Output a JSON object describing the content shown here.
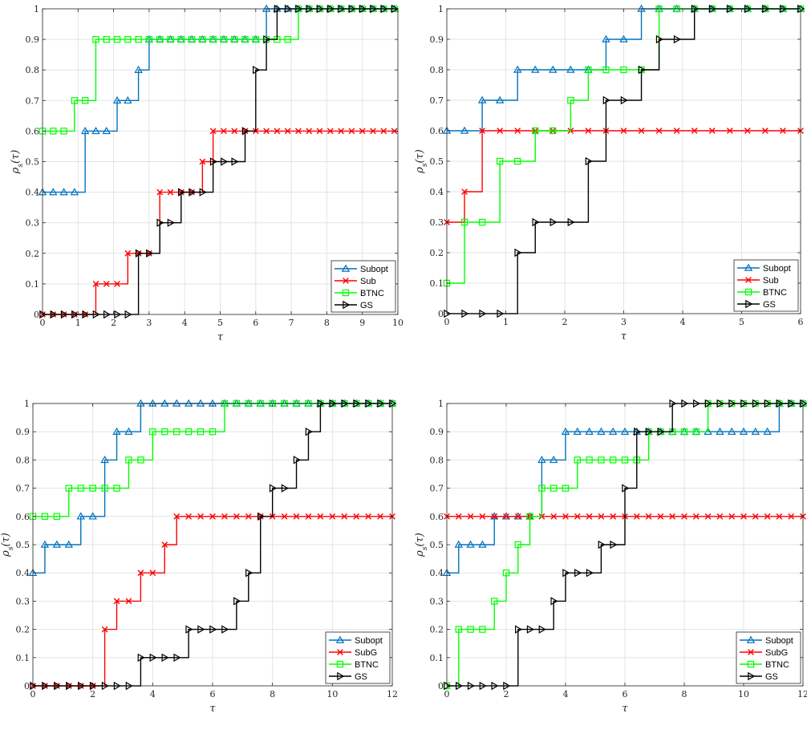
{
  "colors": {
    "Subopt": "#0072BD",
    "Sub": "#FF0000",
    "SubG": "#FF0000",
    "BTNC": "#00FF00",
    "GS": "#000000"
  },
  "chart_data": [
    {
      "type": "line",
      "step": true,
      "xlabel": "τ",
      "ylabel": "ρ_s(τ)",
      "xlim": [
        0,
        10
      ],
      "ylim": [
        0,
        1
      ],
      "xticks": [
        "0",
        "1",
        "2",
        "3",
        "4",
        "5",
        "6",
        "7",
        "8",
        "9",
        "10"
      ],
      "yticks": [
        "0",
        "0.1",
        "0.2",
        "0.3",
        "0.4",
        "0.5",
        "0.6",
        "0.7",
        "0.8",
        "0.9",
        "1"
      ],
      "grid": true,
      "legend_position": "bottom-right",
      "series": [
        {
          "name": "Subopt",
          "marker": "triangle-up",
          "steps": [
            [
              0,
              0.4
            ],
            [
              1.2,
              0.6
            ],
            [
              2.1,
              0.7
            ],
            [
              2.7,
              0.8
            ],
            [
              3.0,
              0.9
            ],
            [
              6.3,
              1.0
            ]
          ]
        },
        {
          "name": "Sub",
          "marker": "x",
          "steps": [
            [
              0,
              0.0
            ],
            [
              1.5,
              0.1
            ],
            [
              2.4,
              0.2
            ],
            [
              3.3,
              0.4
            ],
            [
              4.5,
              0.5
            ],
            [
              4.8,
              0.6
            ]
          ]
        },
        {
          "name": "BTNC",
          "marker": "square",
          "steps": [
            [
              0,
              0.6
            ],
            [
              0.9,
              0.7
            ],
            [
              1.5,
              0.9
            ],
            [
              7.2,
              1.0
            ]
          ]
        },
        {
          "name": "GS",
          "marker": "triangle-right",
          "steps": [
            [
              0,
              0.0
            ],
            [
              2.7,
              0.2
            ],
            [
              3.3,
              0.3
            ],
            [
              3.9,
              0.4
            ],
            [
              4.8,
              0.5
            ],
            [
              5.7,
              0.6
            ],
            [
              6.0,
              0.8
            ],
            [
              6.3,
              0.9
            ],
            [
              6.6,
              1.0
            ]
          ]
        }
      ]
    },
    {
      "type": "line",
      "step": true,
      "xlabel": "τ",
      "ylabel": "ρ_s(τ)",
      "xlim": [
        0,
        6
      ],
      "ylim": [
        0,
        1
      ],
      "xticks": [
        "0",
        "1",
        "2",
        "3",
        "4",
        "5",
        "6"
      ],
      "yticks": [
        "0",
        "0.1",
        "0.2",
        "0.3",
        "0.4",
        "0.5",
        "0.6",
        "0.7",
        "0.8",
        "0.9",
        "1"
      ],
      "grid": true,
      "legend_position": "bottom-right",
      "series": [
        {
          "name": "Subopt",
          "marker": "triangle-up",
          "steps": [
            [
              0,
              0.6
            ],
            [
              0.6,
              0.7
            ],
            [
              1.2,
              0.8
            ],
            [
              2.7,
              0.9
            ],
            [
              3.3,
              1.0
            ]
          ]
        },
        {
          "name": "Sub",
          "marker": "x",
          "steps": [
            [
              0,
              0.3
            ],
            [
              0.3,
              0.4
            ],
            [
              0.6,
              0.6
            ]
          ]
        },
        {
          "name": "BTNC",
          "marker": "square",
          "steps": [
            [
              0,
              0.1
            ],
            [
              0.3,
              0.3
            ],
            [
              0.9,
              0.5
            ],
            [
              1.5,
              0.6
            ],
            [
              2.1,
              0.7
            ],
            [
              2.4,
              0.8
            ],
            [
              3.6,
              1.0
            ]
          ]
        },
        {
          "name": "GS",
          "marker": "triangle-right",
          "steps": [
            [
              0,
              0.0
            ],
            [
              1.2,
              0.2
            ],
            [
              1.5,
              0.3
            ],
            [
              2.4,
              0.5
            ],
            [
              2.7,
              0.7
            ],
            [
              3.3,
              0.8
            ],
            [
              3.6,
              0.9
            ],
            [
              4.2,
              1.0
            ]
          ]
        }
      ]
    },
    {
      "type": "line",
      "step": true,
      "xlabel": "τ",
      "ylabel": "ρ_s(τ)",
      "xlim": [
        0,
        12
      ],
      "ylim": [
        0,
        1
      ],
      "xticks": [
        "0",
        "2",
        "4",
        "6",
        "8",
        "10",
        "12"
      ],
      "yticks": [
        "0",
        "0.1",
        "0.2",
        "0.3",
        "0.4",
        "0.5",
        "0.6",
        "0.7",
        "0.8",
        "0.9",
        "1"
      ],
      "grid": true,
      "legend_position": "bottom-right",
      "series": [
        {
          "name": "Subopt",
          "marker": "triangle-up",
          "steps": [
            [
              0,
              0.4
            ],
            [
              0.4,
              0.5
            ],
            [
              1.6,
              0.6
            ],
            [
              2.4,
              0.8
            ],
            [
              2.8,
              0.9
            ],
            [
              3.6,
              1.0
            ]
          ]
        },
        {
          "name": "SubG",
          "marker": "x",
          "steps": [
            [
              0,
              0.0
            ],
            [
              2.4,
              0.2
            ],
            [
              2.8,
              0.3
            ],
            [
              3.6,
              0.4
            ],
            [
              4.4,
              0.5
            ],
            [
              4.8,
              0.6
            ]
          ]
        },
        {
          "name": "BTNC",
          "marker": "square",
          "steps": [
            [
              0,
              0.6
            ],
            [
              1.2,
              0.7
            ],
            [
              3.2,
              0.8
            ],
            [
              4.0,
              0.9
            ],
            [
              6.4,
              1.0
            ]
          ]
        },
        {
          "name": "GS",
          "marker": "triangle-right",
          "steps": [
            [
              0,
              0.0
            ],
            [
              3.6,
              0.1
            ],
            [
              5.2,
              0.2
            ],
            [
              6.8,
              0.3
            ],
            [
              7.2,
              0.4
            ],
            [
              7.6,
              0.6
            ],
            [
              8.0,
              0.7
            ],
            [
              8.8,
              0.8
            ],
            [
              9.2,
              0.9
            ],
            [
              9.6,
              1.0
            ]
          ]
        }
      ]
    },
    {
      "type": "line",
      "step": true,
      "xlabel": "τ",
      "ylabel": "ρ_s(τ)",
      "xlim": [
        0,
        12
      ],
      "ylim": [
        0,
        1
      ],
      "xticks": [
        "0",
        "2",
        "4",
        "6",
        "8",
        "10",
        "12"
      ],
      "yticks": [
        "0",
        "0.1",
        "0.2",
        "0.3",
        "0.4",
        "0.5",
        "0.6",
        "0.7",
        "0.8",
        "0.9",
        "1"
      ],
      "grid": true,
      "legend_position": "bottom-right",
      "series": [
        {
          "name": "Subopt",
          "marker": "triangle-up",
          "steps": [
            [
              0,
              0.4
            ],
            [
              0.4,
              0.5
            ],
            [
              1.6,
              0.6
            ],
            [
              3.2,
              0.8
            ],
            [
              4.0,
              0.9
            ],
            [
              11.2,
              1.0
            ]
          ]
        },
        {
          "name": "SubG",
          "marker": "x",
          "steps": [
            [
              0,
              0.6
            ]
          ]
        },
        {
          "name": "BTNC",
          "marker": "square",
          "steps": [
            [
              0,
              0.0
            ],
            [
              0.4,
              0.2
            ],
            [
              1.6,
              0.3
            ],
            [
              2.0,
              0.4
            ],
            [
              2.4,
              0.5
            ],
            [
              2.8,
              0.6
            ],
            [
              3.2,
              0.7
            ],
            [
              4.4,
              0.8
            ],
            [
              6.8,
              0.9
            ],
            [
              8.8,
              1.0
            ]
          ]
        },
        {
          "name": "GS",
          "marker": "triangle-right",
          "steps": [
            [
              0,
              0.0
            ],
            [
              2.4,
              0.2
            ],
            [
              3.6,
              0.3
            ],
            [
              4.0,
              0.4
            ],
            [
              5.2,
              0.5
            ],
            [
              6.0,
              0.7
            ],
            [
              6.4,
              0.9
            ],
            [
              7.6,
              1.0
            ]
          ]
        }
      ]
    }
  ]
}
